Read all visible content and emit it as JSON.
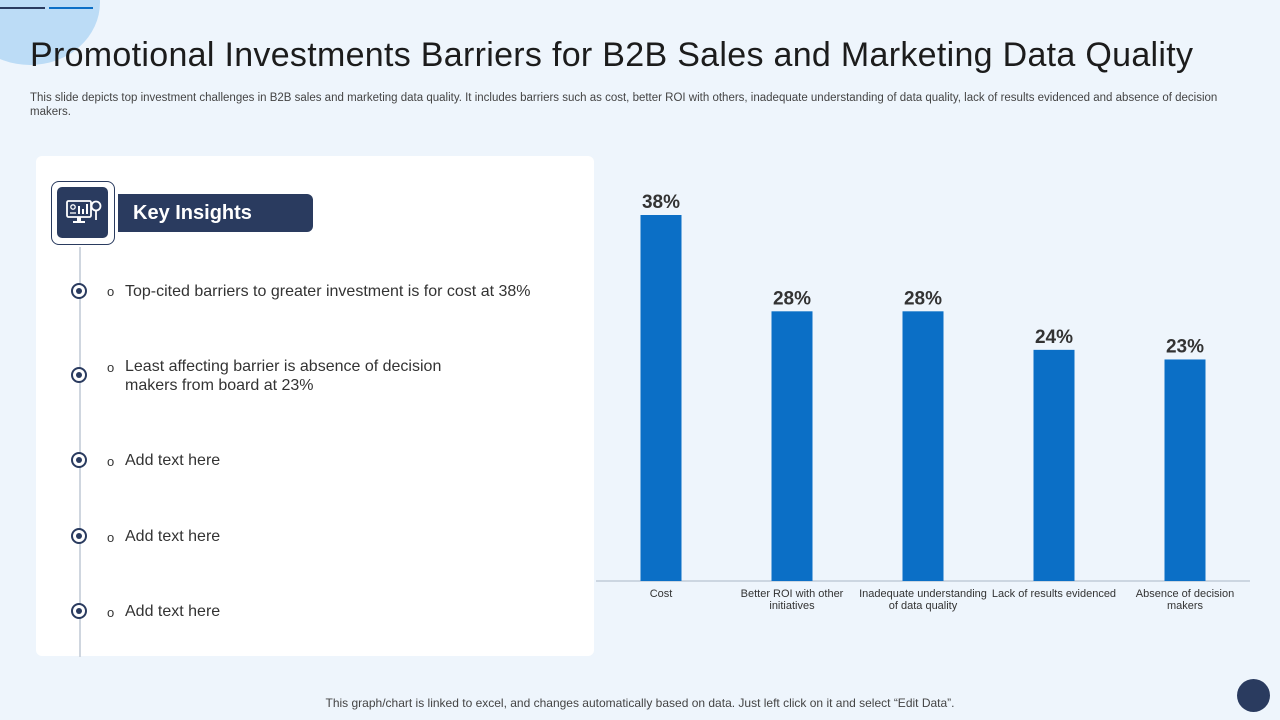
{
  "slide": {
    "title": "Promotional Investments  Barriers for B2B Sales and Marketing Data Quality",
    "subtitle": "This slide depicts top investment challenges in B2B sales and marketing data quality. It includes barriers such as cost, better ROI with others, inadequate understanding of data quality, lack of results evidenced and absence of decision makers.",
    "footer": "This graph/chart is linked to excel, and changes automatically based on data. Just left click on it and select “Edit Data”."
  },
  "insights": {
    "heading": "Key Insights",
    "icon": "analytics-monitor-icon",
    "bullet": "o",
    "items": [
      "Top-cited barriers to greater investment  is for cost at 38%",
      "Least affecting barrier is absence of decision makers from board at 23%",
      "Add text here",
      "Add text here",
      "Add text here"
    ]
  },
  "colors": {
    "bar": "#0b6fc6",
    "navy": "#2a3b5f",
    "background": "#eef5fc"
  },
  "chart_data": {
    "type": "bar",
    "categories": [
      "Cost",
      "Better ROI with other initiatives",
      "Inadequate understanding of data quality",
      "Lack of results evidenced",
      "Absence of decision makers"
    ],
    "values": [
      38,
      28,
      28,
      24,
      23
    ],
    "value_labels": [
      "38%",
      "28%",
      "28%",
      "24%",
      "23%"
    ],
    "unit": "%",
    "ylim": [
      0,
      40
    ],
    "grid": false,
    "legend": "none"
  }
}
